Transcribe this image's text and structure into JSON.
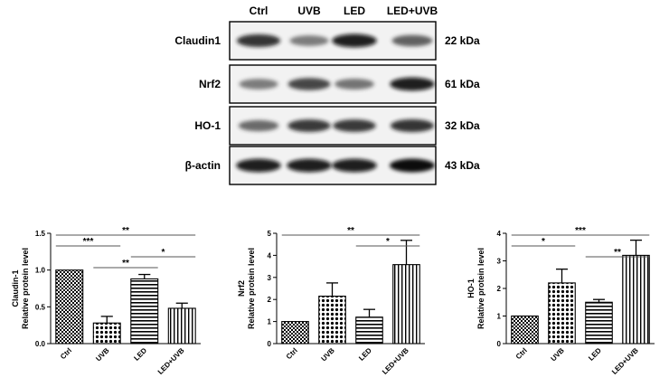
{
  "blot": {
    "lanes": [
      "Ctrl",
      "UVB",
      "LED",
      "LED+UVB"
    ],
    "rows": [
      {
        "protein": "Claudin1",
        "size": "22 kDa",
        "intensity": [
          0.85,
          0.45,
          0.95,
          0.6
        ]
      },
      {
        "protein": "Nrf2",
        "size": "61 kDa",
        "intensity": [
          0.45,
          0.75,
          0.5,
          0.95
        ]
      },
      {
        "protein": "HO-1",
        "size": "32 kDa",
        "intensity": [
          0.55,
          0.8,
          0.8,
          0.85
        ]
      },
      {
        "protein": "β-actin",
        "size": "43 kDa",
        "intensity": [
          0.95,
          0.95,
          0.95,
          1.0
        ]
      }
    ]
  },
  "chart_data": [
    {
      "type": "bar",
      "categories": [
        "Ctrl",
        "UVB",
        "LED",
        "LED+UVB"
      ],
      "values": [
        1.0,
        0.28,
        0.88,
        0.48
      ],
      "errors": [
        0,
        0.09,
        0.06,
        0.07
      ],
      "ylabel": "Claudin-1\nRelative protein level",
      "ylim": [
        0,
        1.5
      ],
      "yticks": [
        "0.0",
        "0.5",
        "1.0",
        "1.5"
      ],
      "significance": [
        {
          "from": 0,
          "to": 3,
          "label": "**"
        },
        {
          "from": 0,
          "to": 1,
          "label": "***"
        },
        {
          "from": 2,
          "to": 3,
          "label": "*"
        },
        {
          "from": 1,
          "to": 2,
          "label": "**"
        }
      ]
    },
    {
      "type": "bar",
      "categories": [
        "Ctrl",
        "UVB",
        "LED",
        "LED+UVB"
      ],
      "values": [
        1.0,
        2.15,
        1.2,
        3.58
      ],
      "errors": [
        0,
        0.6,
        0.35,
        1.1
      ],
      "ylabel": "Nrf2\nRelative protein level",
      "ylim": [
        0,
        5
      ],
      "yticks": [
        "0",
        "1",
        "2",
        "3",
        "4",
        "5"
      ],
      "significance": [
        {
          "from": 0,
          "to": 3,
          "label": "**"
        },
        {
          "from": 2,
          "to": 3,
          "label": "*"
        }
      ]
    },
    {
      "type": "bar",
      "categories": [
        "Ctrl",
        "UVB",
        "LED",
        "LED+UVB"
      ],
      "values": [
        1.0,
        2.2,
        1.5,
        3.2
      ],
      "errors": [
        0,
        0.5,
        0.1,
        0.55
      ],
      "ylabel": "HO-1\nRelative protein level",
      "ylim": [
        0,
        4
      ],
      "yticks": [
        "0",
        "1",
        "2",
        "3",
        "4"
      ],
      "significance": [
        {
          "from": 0,
          "to": 3,
          "label": "***"
        },
        {
          "from": 0,
          "to": 1,
          "label": "*"
        },
        {
          "from": 2,
          "to": 3,
          "label": "**"
        }
      ]
    }
  ]
}
